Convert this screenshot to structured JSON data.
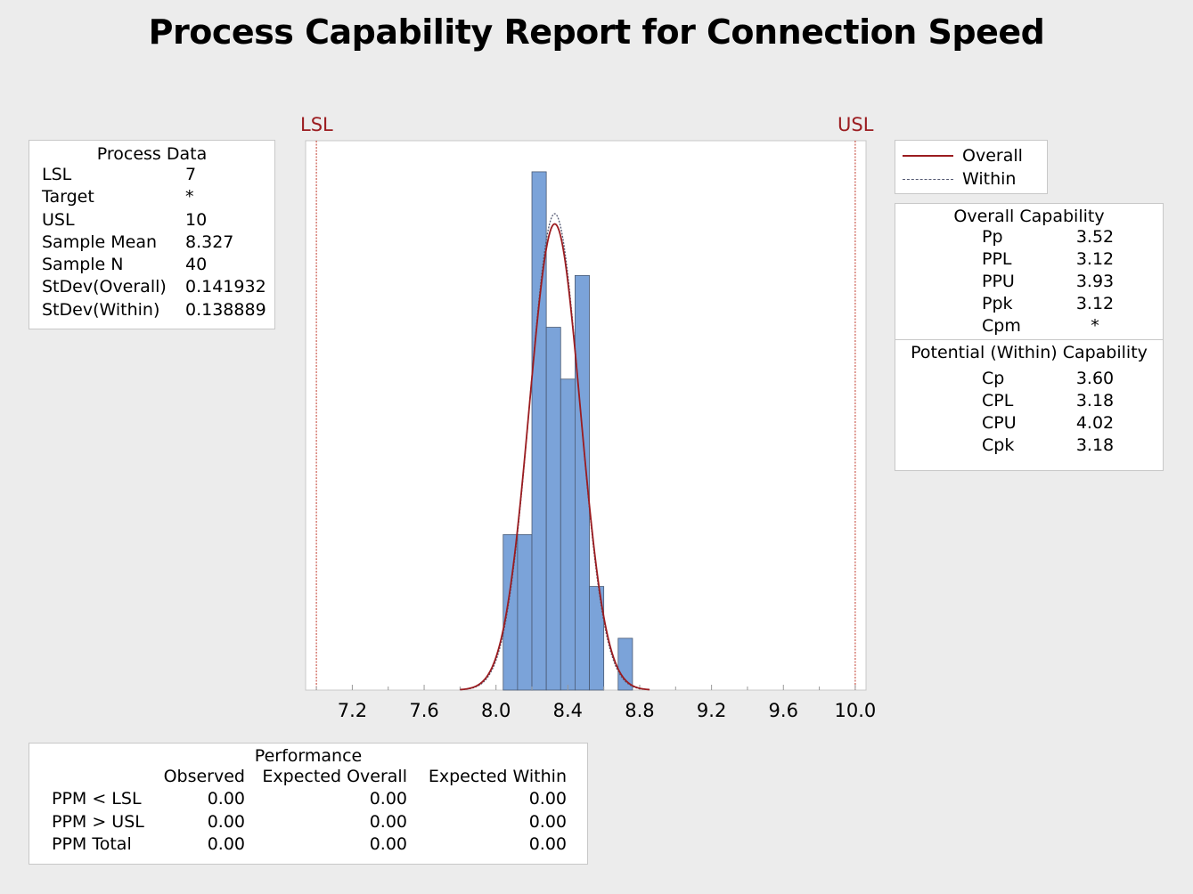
{
  "title": "Process Capability Report for Connection Speed",
  "colors": {
    "bar": "#7ba3d9",
    "overall": "#9b1c20",
    "within": "#555a73",
    "spec": "#c0392b"
  },
  "process_data": {
    "header": "Process Data",
    "rows": [
      {
        "label": "LSL",
        "value": "7"
      },
      {
        "label": "Target",
        "value": "*"
      },
      {
        "label": "USL",
        "value": "10"
      },
      {
        "label": "Sample Mean",
        "value": "8.327"
      },
      {
        "label": "Sample N",
        "value": "40"
      },
      {
        "label": "StDev(Overall)",
        "value": "0.141932"
      },
      {
        "label": "StDev(Within)",
        "value": "0.138889"
      }
    ]
  },
  "legend": {
    "overall": "Overall",
    "within": "Within"
  },
  "overall_capability": {
    "header": "Overall Capability",
    "rows": [
      {
        "label": "Pp",
        "value": "3.52"
      },
      {
        "label": "PPL",
        "value": "3.12"
      },
      {
        "label": "PPU",
        "value": "3.93"
      },
      {
        "label": "Ppk",
        "value": "3.12"
      },
      {
        "label": "Cpm",
        "value": "*"
      }
    ]
  },
  "potential_capability": {
    "header": "Potential (Within) Capability",
    "rows": [
      {
        "label": "Cp",
        "value": "3.60"
      },
      {
        "label": "CPL",
        "value": "3.18"
      },
      {
        "label": "CPU",
        "value": "4.02"
      },
      {
        "label": "Cpk",
        "value": "3.18"
      }
    ]
  },
  "performance": {
    "header": "Performance",
    "columns": [
      "",
      "Observed",
      "Expected Overall",
      "Expected Within"
    ],
    "rows": [
      [
        "PPM < LSL",
        "0.00",
        "0.00",
        "0.00"
      ],
      [
        "PPM > USL",
        "0.00",
        "0.00",
        "0.00"
      ],
      [
        "PPM Total",
        "0.00",
        "0.00",
        "0.00"
      ]
    ]
  },
  "chart_data": {
    "type": "bar",
    "subtype": "histogram",
    "lsl_label": "LSL",
    "usl_label": "USL",
    "lsl": 7,
    "usl": 10,
    "xlim": [
      6.94,
      10.06
    ],
    "xticks": [
      7.2,
      7.6,
      8.0,
      8.4,
      8.8,
      9.2,
      9.6,
      10.0
    ],
    "xtick_labels": [
      "7.2",
      "7.6",
      "8.0",
      "8.4",
      "8.8",
      "9.2",
      "9.6",
      "10.0"
    ],
    "bin_width": 0.08,
    "bins": [
      {
        "start": 8.04,
        "count": 3
      },
      {
        "start": 8.12,
        "count": 3
      },
      {
        "start": 8.2,
        "count": 10
      },
      {
        "start": 8.28,
        "count": 7
      },
      {
        "start": 8.36,
        "count": 6
      },
      {
        "start": 8.44,
        "count": 8
      },
      {
        "start": 8.52,
        "count": 2
      },
      {
        "start": 8.6,
        "count": 0
      },
      {
        "start": 8.68,
        "count": 1
      }
    ],
    "ylim": [
      0,
      10.6
    ],
    "mean": 8.327,
    "sample_n": 40,
    "stdev_overall": 0.141932,
    "stdev_within": 0.138889,
    "series": [
      {
        "name": "Overall",
        "style": "solid"
      },
      {
        "name": "Within",
        "style": "dashed"
      }
    ]
  }
}
